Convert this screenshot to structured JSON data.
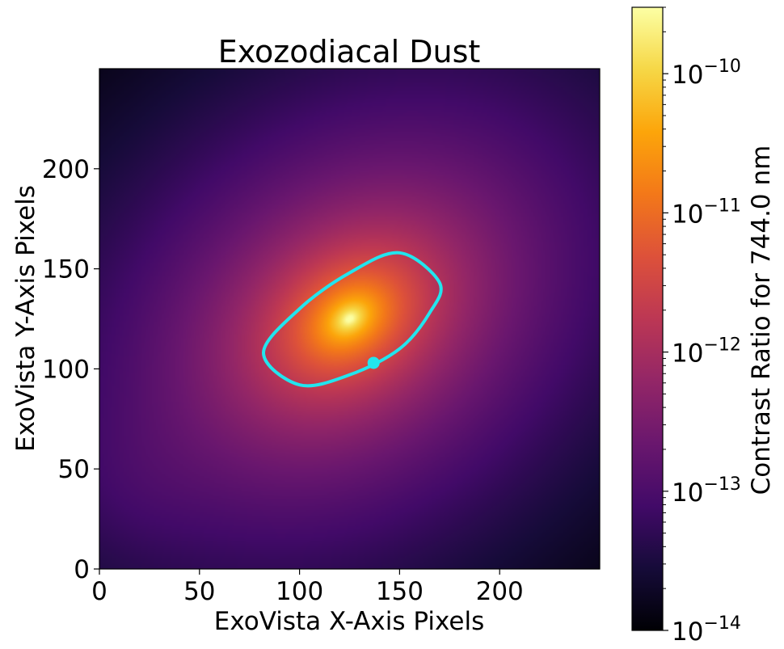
{
  "chart_data": {
    "type": "heatmap",
    "title": "Exozodiacal Dust",
    "xlabel": "ExoVista X-Axis Pixels",
    "ylabel": "ExoVista Y-Axis Pixels",
    "xlim": [
      0,
      250
    ],
    "ylim": [
      0,
      250
    ],
    "xticks": [
      0,
      50,
      100,
      150,
      200
    ],
    "yticks": [
      0,
      50,
      100,
      150,
      200
    ],
    "colormap": "inferno",
    "colorbar": {
      "label": "Contrast Ratio for 744.0 nm",
      "scale": "log",
      "range": [
        1e-14,
        3e-10
      ],
      "ticks": [
        {
          "base": "10",
          "exp": "−14",
          "value": 1e-14
        },
        {
          "base": "10",
          "exp": "−13",
          "value": 1e-13
        },
        {
          "base": "10",
          "exp": "−12",
          "value": 1e-12
        },
        {
          "base": "10",
          "exp": "−11",
          "value": 1e-11
        },
        {
          "base": "10",
          "exp": "−10",
          "value": 1e-10
        }
      ]
    },
    "disk_peak": {
      "x": 125,
      "y": 125
    },
    "orbit": {
      "center": [
        125.5,
        125
      ],
      "path_points": [
        [
          170,
          143
        ],
        [
          150,
          158
        ],
        [
          125,
          148
        ],
        [
          100,
          130
        ],
        [
          82,
          108
        ],
        [
          100,
          92
        ],
        [
          125,
          97
        ],
        [
          150,
          110
        ],
        [
          165,
          128
        ]
      ],
      "color": "#22e5ee"
    },
    "planet": {
      "x": 137,
      "y": 103,
      "color": "#22e5ee"
    }
  }
}
